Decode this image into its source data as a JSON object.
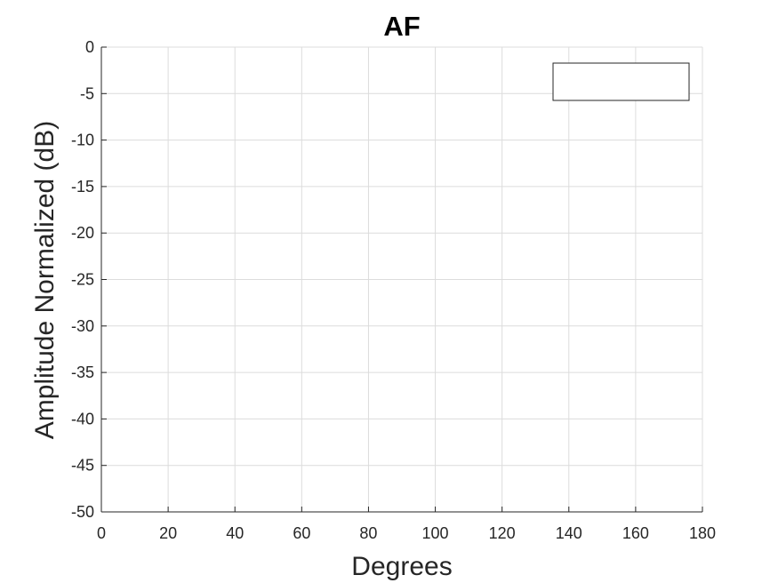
{
  "chart_data": {
    "type": "line",
    "title": "AF",
    "xlabel": "Degrees",
    "ylabel": "Amplitude Normalized (dB)",
    "xlim": [
      0,
      180
    ],
    "ylim": [
      -50,
      0
    ],
    "xticks": [
      0,
      20,
      40,
      60,
      80,
      100,
      120,
      140,
      160,
      180
    ],
    "yticks": [
      0,
      -5,
      -10,
      -15,
      -20,
      -25,
      -30,
      -35,
      -40,
      -45,
      -50
    ],
    "grid": true,
    "legend": {
      "placement": "top-right",
      "entries": []
    },
    "series": []
  }
}
